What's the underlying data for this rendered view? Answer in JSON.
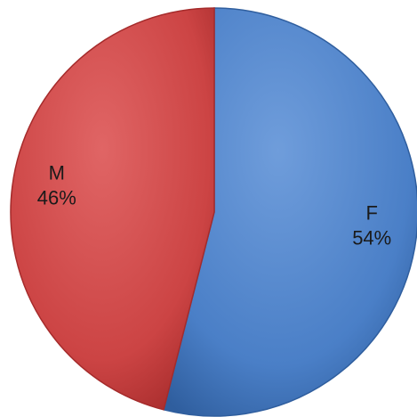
{
  "chart_data": {
    "type": "pie",
    "title": "",
    "start_angle_deg": 0,
    "direction": "clockwise",
    "slices": [
      {
        "label": "F",
        "value": 54,
        "value_label": "54%",
        "color": "#4a7fc7",
        "color_dark": "#2f5e9e",
        "color_light": "#6f9ddb"
      },
      {
        "label": "M",
        "value": 46,
        "value_label": "46%",
        "color": "#cc4444",
        "color_dark": "#a52b2b",
        "color_light": "#e06565"
      }
    ],
    "legend": "none",
    "data_labels": "category-and-percent-inside"
  }
}
